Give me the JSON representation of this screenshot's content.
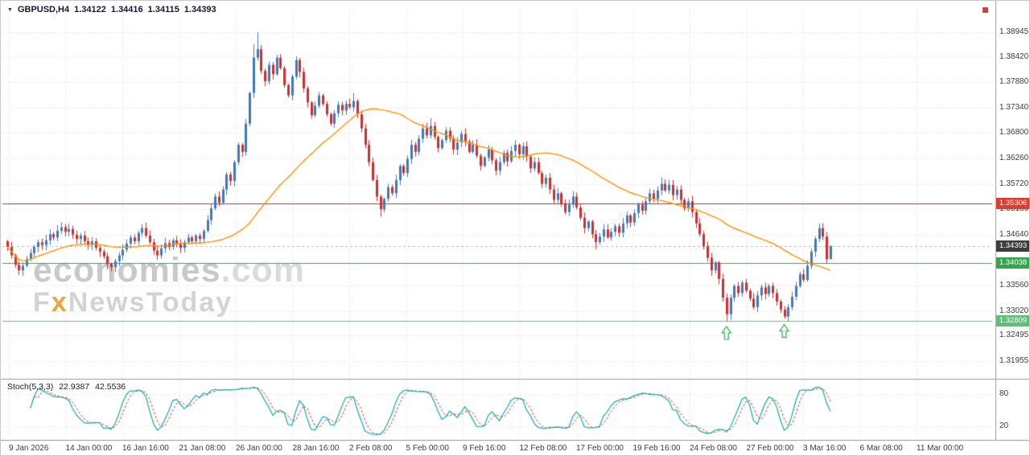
{
  "quote_bar": {
    "symbol": "GBPUSD,H4",
    "open": "1.34122",
    "high": "1.34416",
    "low": "1.34115",
    "close": "1.34393"
  },
  "watermark": {
    "line1_main": "economies",
    "line1_suffix": ".com",
    "line2_prefix": "F",
    "line2_accent": "x",
    "line2_rest": "NewsToday"
  },
  "chart_data": {
    "type": "candlestick",
    "symbol": "GBPUSD",
    "timeframe": "H4",
    "ylim": [
      1.3168,
      1.392
    ],
    "grid": true,
    "price_ticks": [
      "1.38945",
      "1.38420",
      "1.37880",
      "1.37340",
      "1.36800",
      "1.36260",
      "1.35720",
      "1.35180",
      "1.34640",
      "1.33560",
      "1.33020",
      "1.32495",
      "1.31955"
    ],
    "time_labels": [
      "9 Jan 2026",
      "14 Jan 00:00",
      "16 Jan 16:00",
      "21 Jan 08:00",
      "26 Jan 00:00",
      "28 Jan 16:00",
      "2 Feb 08:00",
      "5 Feb 00:00",
      "9 Feb 16:00",
      "12 Feb 08:00",
      "17 Feb 00:00",
      "19 Feb 16:00",
      "24 Feb 08:00",
      "27 Feb 00:00",
      "3 Mar 16:00",
      "6 Mar 08:00",
      "11 Mar 00:00"
    ],
    "colors": {
      "up": "#4278b8",
      "down": "#cc2f2f",
      "grid": "#dcdcdc"
    },
    "ma": {
      "period": 40,
      "color": "#ff9500"
    },
    "candles": {
      "first_open": 1.345,
      "closes": [
        1.3438,
        1.342,
        1.34,
        1.3388,
        1.3398,
        1.3412,
        1.3425,
        1.3438,
        1.3448,
        1.3442,
        1.3452,
        1.3465,
        1.3458,
        1.3472,
        1.348,
        1.347,
        1.3476,
        1.3464,
        1.3455,
        1.3462,
        1.345,
        1.3442,
        1.345,
        1.3436,
        1.3428,
        1.3418,
        1.3402,
        1.3395,
        1.3408,
        1.342,
        1.3432,
        1.3445,
        1.3458,
        1.345,
        1.3468,
        1.3478,
        1.3462,
        1.3448,
        1.343,
        1.342,
        1.3435,
        1.3446,
        1.3438,
        1.3452,
        1.3444,
        1.3436,
        1.3448,
        1.3458,
        1.345,
        1.3462,
        1.3455,
        1.3472,
        1.3495,
        1.352,
        1.3545,
        1.3532,
        1.356,
        1.3592,
        1.3578,
        1.3618,
        1.3655,
        1.364,
        1.37,
        1.3765,
        1.384,
        1.3858,
        1.3812,
        1.379,
        1.3825,
        1.3805,
        1.384,
        1.3818,
        1.3782,
        1.376,
        1.38,
        1.3835,
        1.381,
        1.3775,
        1.3745,
        1.3718,
        1.3738,
        1.376,
        1.3742,
        1.372,
        1.37,
        1.3722,
        1.374,
        1.3728,
        1.3742,
        1.3735,
        1.3748,
        1.372,
        1.369,
        1.3655,
        1.3618,
        1.358,
        1.3545,
        1.3518,
        1.354,
        1.3565,
        1.3552,
        1.358,
        1.361,
        1.3595,
        1.3625,
        1.3655,
        1.364,
        1.3668,
        1.369,
        1.3675,
        1.3695,
        1.3672,
        1.3648,
        1.3665,
        1.3685,
        1.3668,
        1.3645,
        1.366,
        1.3678,
        1.3662,
        1.364,
        1.3655,
        1.3632,
        1.361,
        1.3628,
        1.3645,
        1.3622,
        1.36,
        1.3618,
        1.3638,
        1.362,
        1.3642,
        1.3655,
        1.3635,
        1.3652,
        1.363,
        1.3605,
        1.3618,
        1.3595,
        1.3572,
        1.3585,
        1.356,
        1.3538,
        1.3552,
        1.353,
        1.3512,
        1.3528,
        1.3545,
        1.3522,
        1.35,
        1.3478,
        1.3492,
        1.3465,
        1.3448,
        1.346,
        1.3475,
        1.3458,
        1.347,
        1.3482,
        1.3468,
        1.3488,
        1.3505,
        1.349,
        1.351,
        1.3528,
        1.3515,
        1.3535,
        1.3552,
        1.354,
        1.3558,
        1.3572,
        1.3558,
        1.357,
        1.3548,
        1.356,
        1.3538,
        1.352,
        1.3535,
        1.3512,
        1.3488,
        1.3465,
        1.344,
        1.3415,
        1.3388,
        1.3405,
        1.337,
        1.333,
        1.3295,
        1.333,
        1.3355,
        1.334,
        1.3362,
        1.3345,
        1.3328,
        1.331,
        1.3335,
        1.3352,
        1.3338,
        1.3355,
        1.334,
        1.3322,
        1.3305,
        1.329,
        1.331,
        1.3332,
        1.3355,
        1.338,
        1.3368,
        1.3398,
        1.3428,
        1.3455,
        1.3478,
        1.346,
        1.3412,
        1.34393
      ],
      "wick_overrides": {
        "3": {
          "l": 1.3378
        },
        "27": {
          "l": 1.3386
        },
        "64": {
          "h": 1.3868
        },
        "65": {
          "h": 1.38945
        },
        "90": {
          "h": 1.3765
        },
        "97": {
          "l": 1.3502
        },
        "110": {
          "h": 1.3712
        },
        "153": {
          "l": 1.3433
        },
        "170": {
          "h": 1.3586
        },
        "187": {
          "l": 1.3281
        },
        "202": {
          "l": 1.32852
        },
        "211": {
          "h": 1.3488
        }
      },
      "last": {
        "open": 1.34122,
        "high": 1.34416,
        "low": 1.34115,
        "close": 1.34393
      }
    },
    "hlines": [
      {
        "name": "resistance-level",
        "price": 1.35306,
        "label": "1.35306",
        "style": "solid",
        "line_color": "#a8324e",
        "label_bg": "#e23b2e"
      },
      {
        "name": "current-price",
        "price": 1.34393,
        "label": "1.34393",
        "style": "dash",
        "line_color": "#b8b8b8",
        "label_bg": "#3d3d3d"
      },
      {
        "name": "support-level-1",
        "price": 1.34038,
        "label": "1.34038",
        "style": "solid",
        "line_color": "#35a84e",
        "label_bg": "#33a64c"
      },
      {
        "name": "support-level-2",
        "price": 1.32809,
        "label": "1.32809",
        "style": "solid",
        "line_color": "#63c37d",
        "label_bg": "#5fbf77"
      }
    ],
    "arrows": {
      "color": "#4db36a",
      "direction": "up",
      "items": [
        {
          "index": 187
        },
        {
          "index": 202
        }
      ]
    },
    "stochastic": {
      "label": "Stoch(5,3,3)",
      "k_period": 5,
      "d_period": 3,
      "slowing": 3,
      "current_k": "22.9387",
      "current_d": "42.5536",
      "range": [
        0,
        100
      ],
      "levels": [
        "80",
        "20"
      ],
      "k_color": "#20b2aa",
      "d_color": "#e23b2e"
    }
  }
}
